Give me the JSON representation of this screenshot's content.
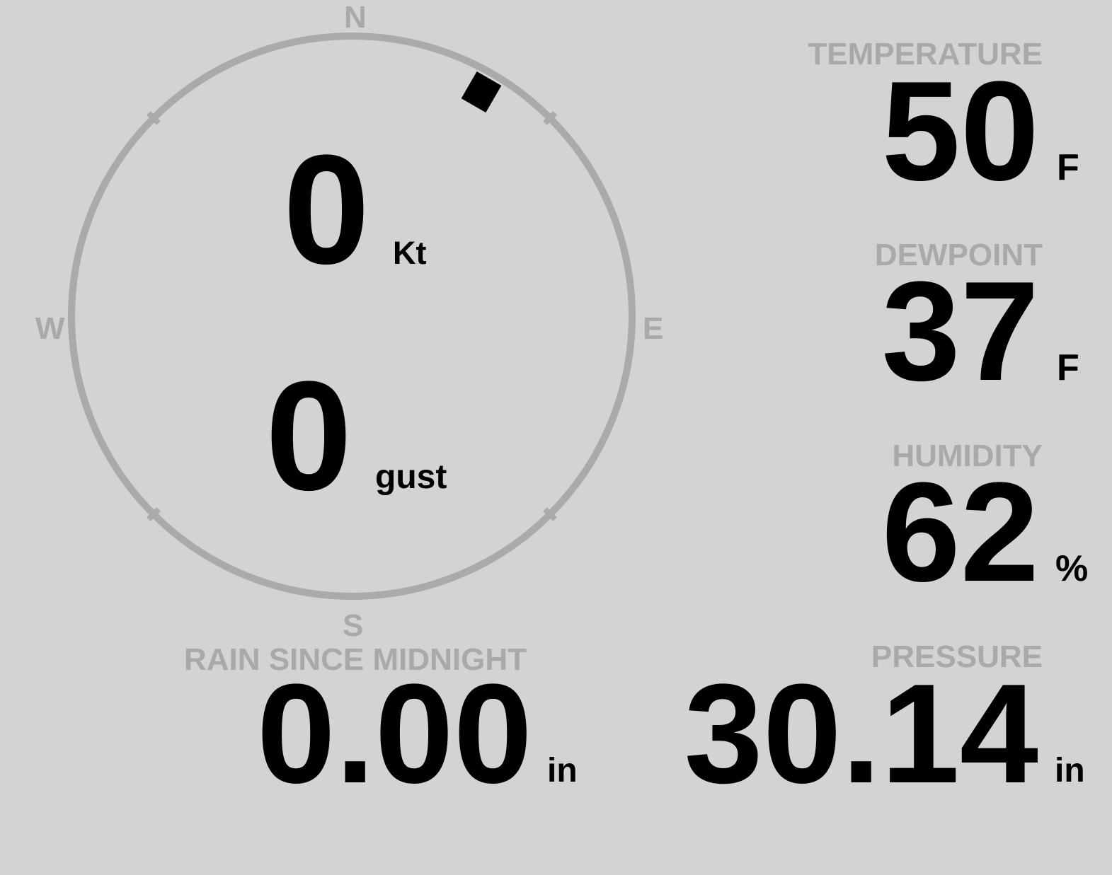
{
  "colors": {
    "background": "#d3d3d3",
    "label": "#a9a9a9",
    "value": "#000000",
    "compass_ring": "#aaaaaa",
    "wind_marker": "#000000"
  },
  "wind": {
    "direction_deg": 30,
    "speed": "0",
    "speed_unit": "Kt",
    "gust": "0",
    "gust_unit": "gust",
    "cardinals": {
      "n": "N",
      "e": "E",
      "s": "S",
      "w": "W"
    }
  },
  "temperature": {
    "label": "TEMPERATURE",
    "value": "50",
    "unit": "F"
  },
  "dewpoint": {
    "label": "DEWPOINT",
    "value": "37",
    "unit": "F"
  },
  "humidity": {
    "label": "HUMIDITY",
    "value": "62",
    "unit": "%"
  },
  "rain": {
    "label": "RAIN SINCE MIDNIGHT",
    "value": "0.00",
    "unit": "in"
  },
  "pressure": {
    "label": "PRESSURE",
    "value": "30.14",
    "unit": "in"
  }
}
